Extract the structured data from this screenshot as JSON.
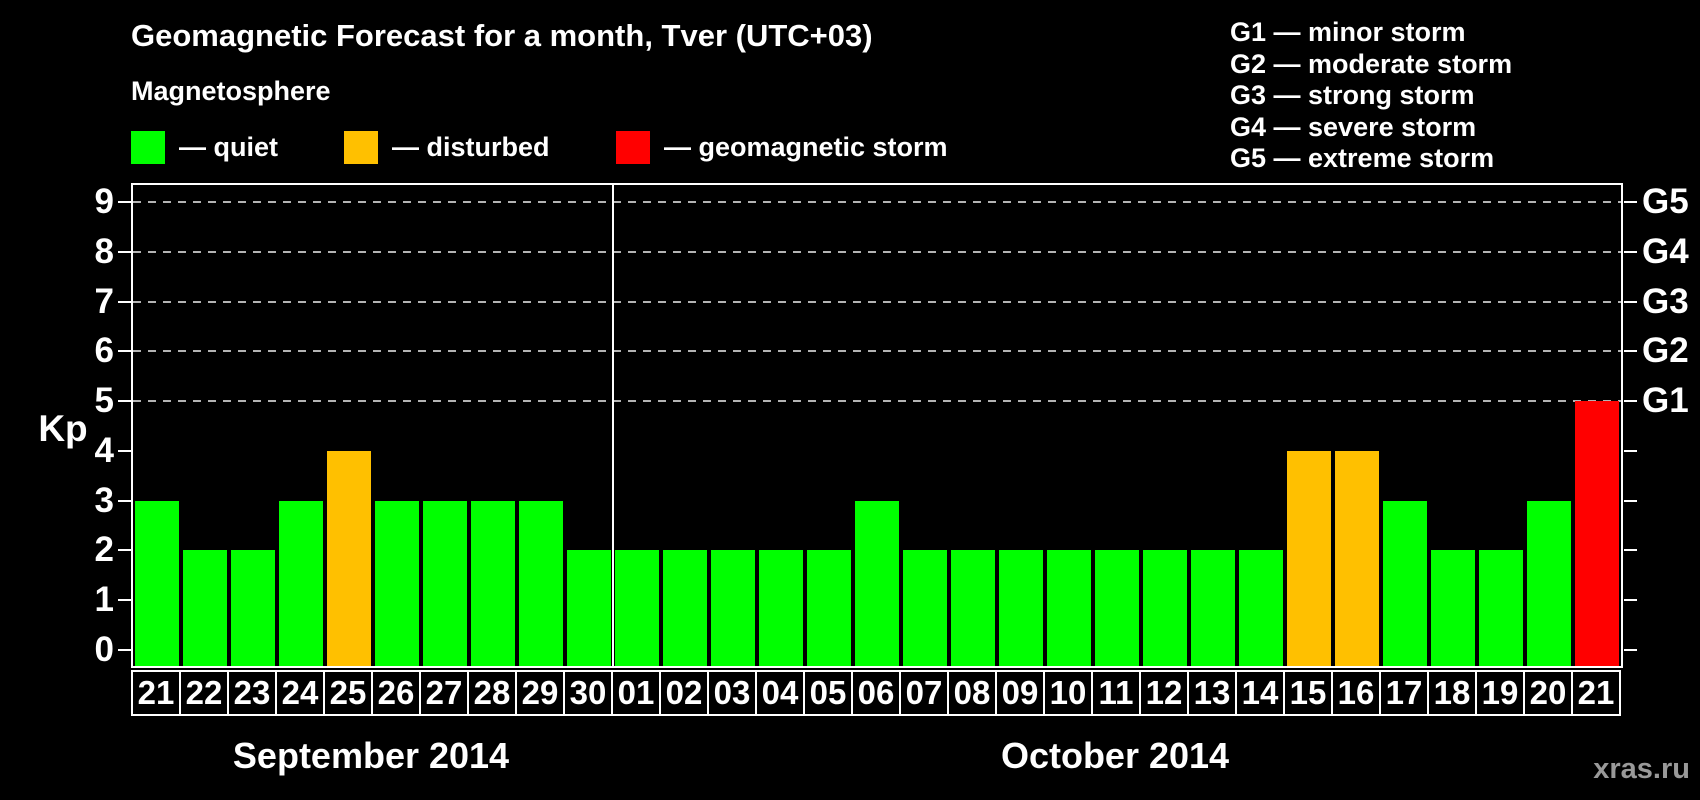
{
  "header": {
    "title": "Geomagnetic Forecast for a month, Tver (UTC+03)",
    "legend_title": "Magnetosphere",
    "legend": [
      {
        "key": "quiet",
        "label": "— quiet",
        "color": "#00ff00"
      },
      {
        "key": "disturbed",
        "label": "— disturbed",
        "color": "#ffc000"
      },
      {
        "key": "storm",
        "label": "— geomagnetic storm",
        "color": "#ff0000"
      }
    ],
    "storm_scale": [
      "G1 — minor storm",
      "G2 — moderate storm",
      "G3 — strong storm",
      "G4 — severe storm",
      "G5 — extreme storm"
    ]
  },
  "chart_data": {
    "type": "bar",
    "title": "Geomagnetic Forecast for a month, Tver (UTC+03)",
    "ylabel": "Kp",
    "ylim": [
      0,
      9
    ],
    "yticks": [
      0,
      1,
      2,
      3,
      4,
      5,
      6,
      7,
      8,
      9
    ],
    "gridlines_at_kp": [
      5,
      6,
      7,
      8,
      9
    ],
    "grid": "dashed",
    "legend_position": "top",
    "right_axis": [
      {
        "label": "G1",
        "kp": 5
      },
      {
        "label": "G2",
        "kp": 6
      },
      {
        "label": "G3",
        "kp": 7
      },
      {
        "label": "G4",
        "kp": 8
      },
      {
        "label": "G5",
        "kp": 9
      }
    ],
    "colors": {
      "quiet": "#00ff00",
      "disturbed": "#ffc000",
      "storm": "#ff0000"
    },
    "months": [
      {
        "label": "September 2014",
        "bars": [
          {
            "day": "21",
            "kp": 3,
            "status": "quiet"
          },
          {
            "day": "22",
            "kp": 2,
            "status": "quiet"
          },
          {
            "day": "23",
            "kp": 2,
            "status": "quiet"
          },
          {
            "day": "24",
            "kp": 3,
            "status": "quiet"
          },
          {
            "day": "25",
            "kp": 4,
            "status": "disturbed"
          },
          {
            "day": "26",
            "kp": 3,
            "status": "quiet"
          },
          {
            "day": "27",
            "kp": 3,
            "status": "quiet"
          },
          {
            "day": "28",
            "kp": 3,
            "status": "quiet"
          },
          {
            "day": "29",
            "kp": 3,
            "status": "quiet"
          },
          {
            "day": "30",
            "kp": 2,
            "status": "quiet"
          }
        ]
      },
      {
        "label": "October 2014",
        "bars": [
          {
            "day": "01",
            "kp": 2,
            "status": "quiet"
          },
          {
            "day": "02",
            "kp": 2,
            "status": "quiet"
          },
          {
            "day": "03",
            "kp": 2,
            "status": "quiet"
          },
          {
            "day": "04",
            "kp": 2,
            "status": "quiet"
          },
          {
            "day": "05",
            "kp": 2,
            "status": "quiet"
          },
          {
            "day": "06",
            "kp": 3,
            "status": "quiet"
          },
          {
            "day": "07",
            "kp": 2,
            "status": "quiet"
          },
          {
            "day": "08",
            "kp": 2,
            "status": "quiet"
          },
          {
            "day": "09",
            "kp": 2,
            "status": "quiet"
          },
          {
            "day": "10",
            "kp": 2,
            "status": "quiet"
          },
          {
            "day": "11",
            "kp": 2,
            "status": "quiet"
          },
          {
            "day": "12",
            "kp": 2,
            "status": "quiet"
          },
          {
            "day": "13",
            "kp": 2,
            "status": "quiet"
          },
          {
            "day": "14",
            "kp": 2,
            "status": "quiet"
          },
          {
            "day": "15",
            "kp": 4,
            "status": "disturbed"
          },
          {
            "day": "16",
            "kp": 4,
            "status": "disturbed"
          },
          {
            "day": "17",
            "kp": 3,
            "status": "quiet"
          },
          {
            "day": "18",
            "kp": 2,
            "status": "quiet"
          },
          {
            "day": "19",
            "kp": 2,
            "status": "quiet"
          },
          {
            "day": "20",
            "kp": 3,
            "status": "quiet"
          },
          {
            "day": "21",
            "kp": 5,
            "status": "storm"
          }
        ]
      }
    ]
  },
  "watermark": "xras.ru"
}
